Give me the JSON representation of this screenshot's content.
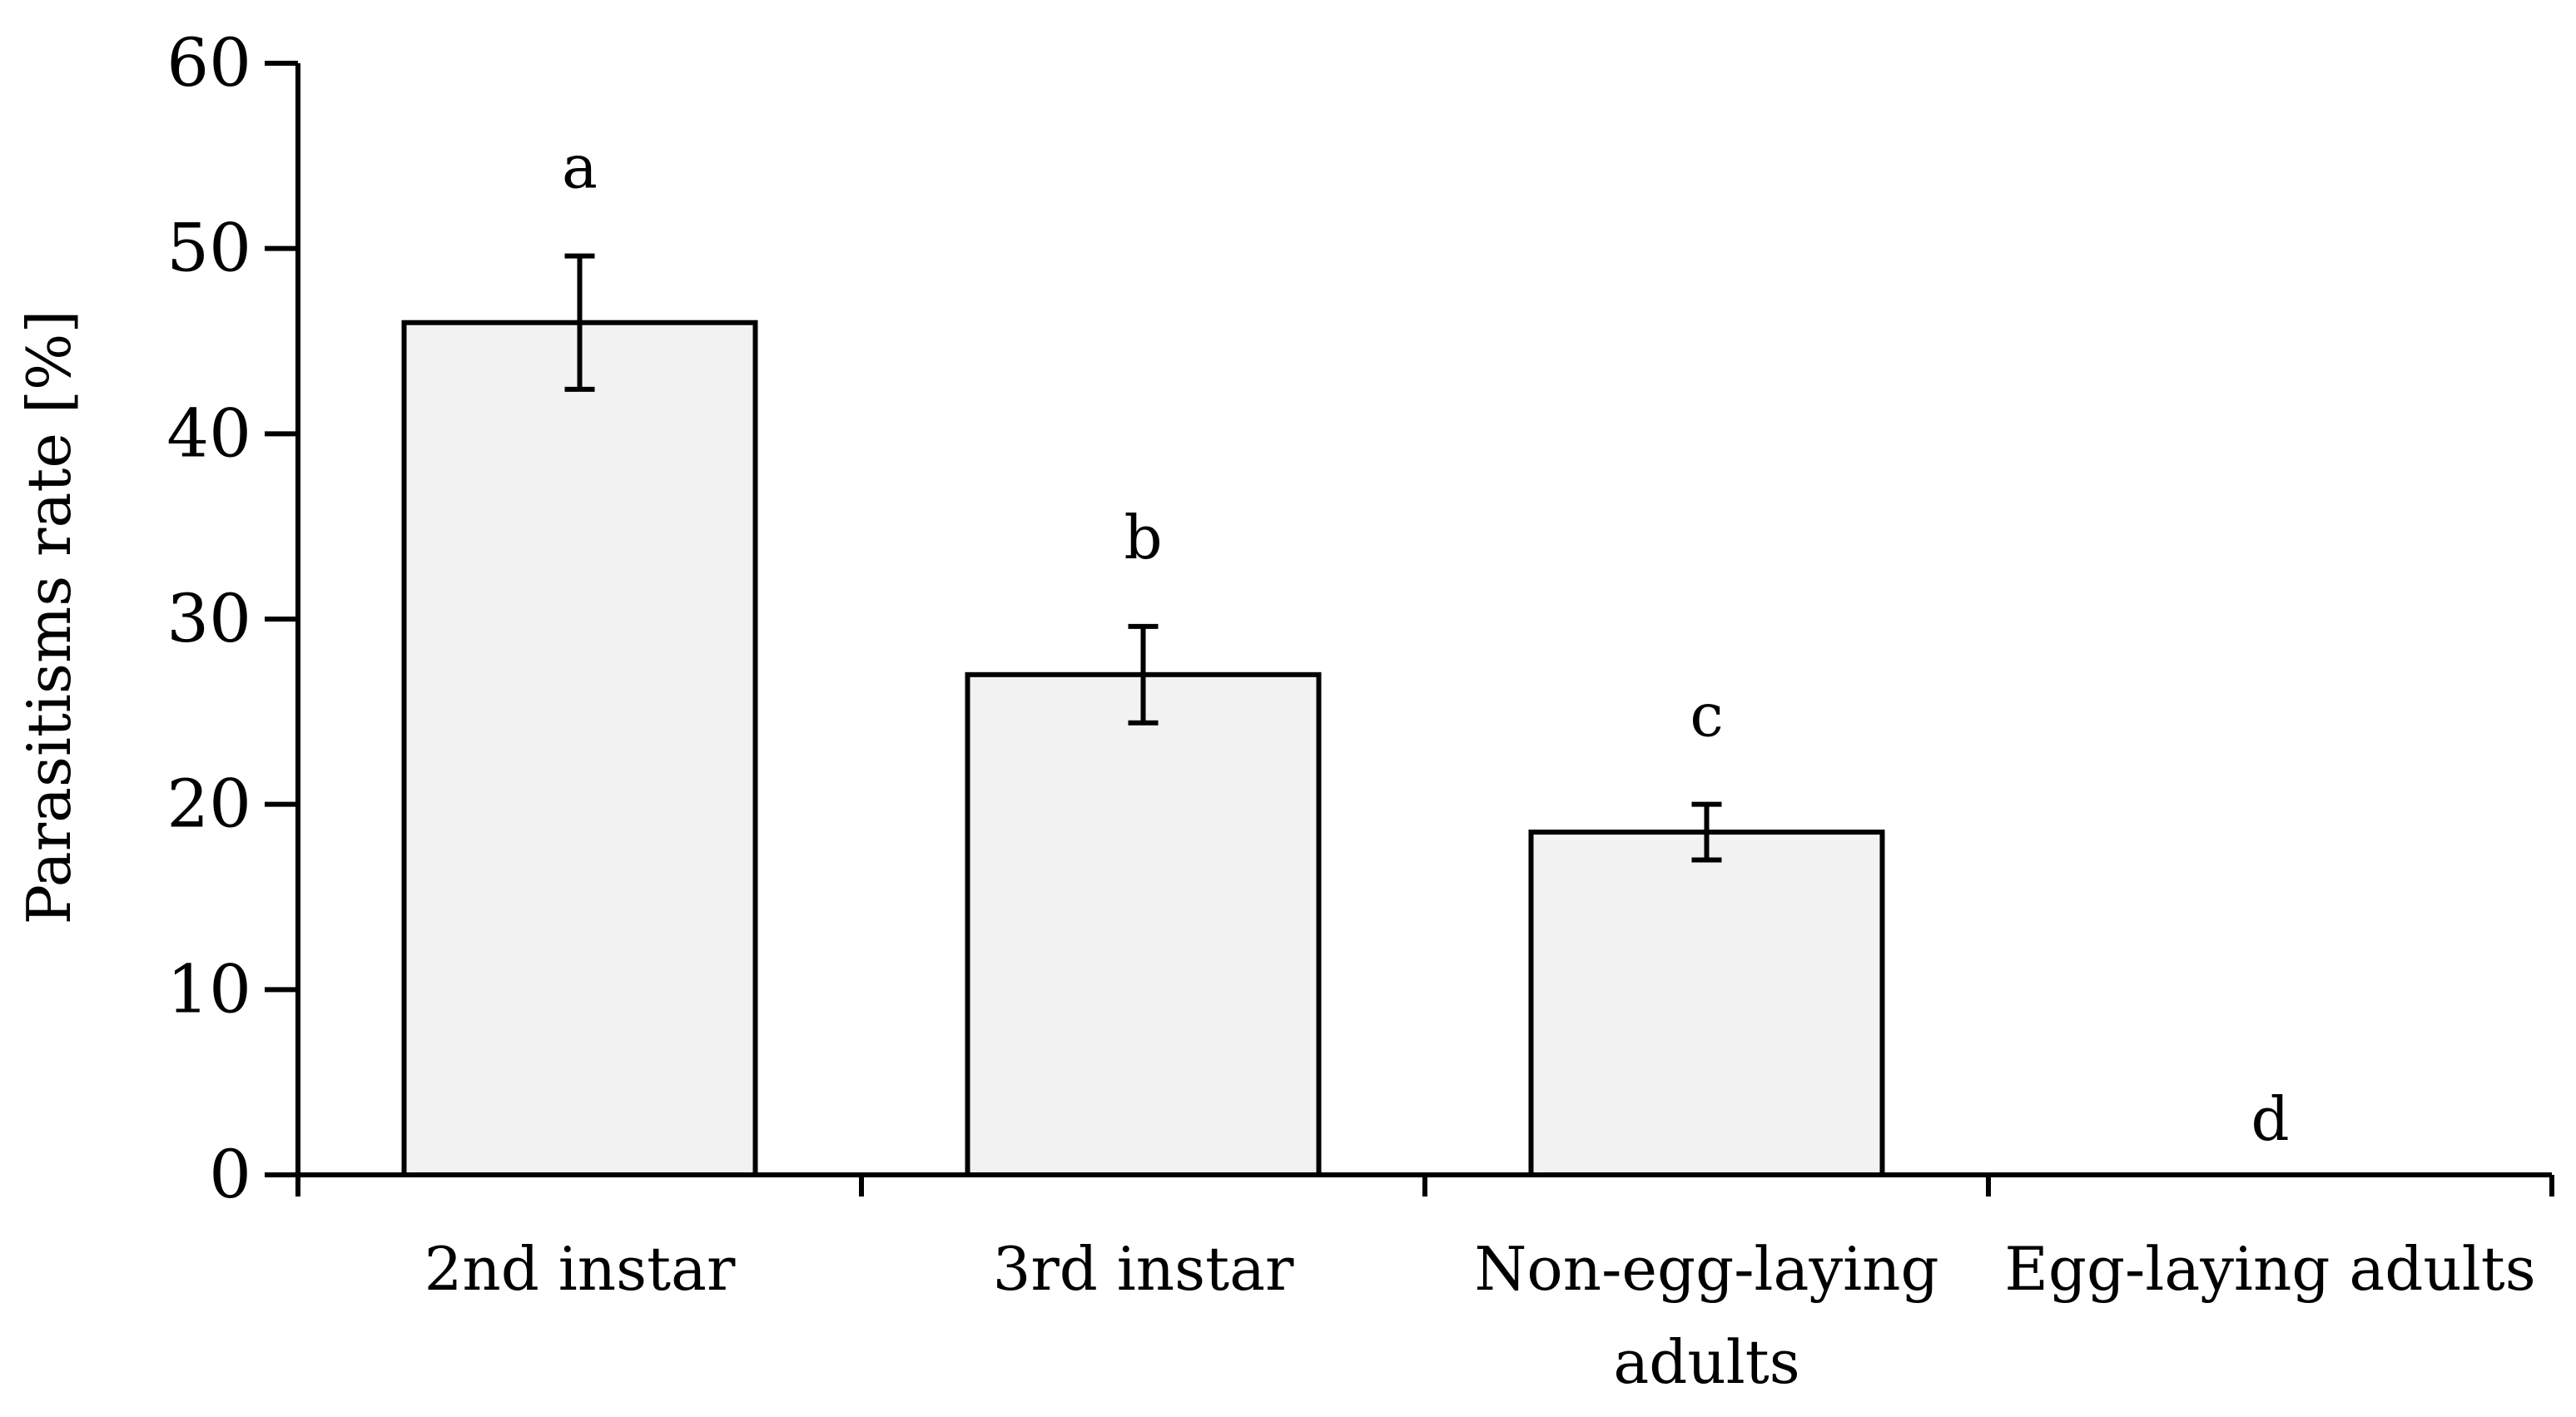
{
  "chart_data": {
    "type": "bar",
    "title": "",
    "xlabel": "",
    "ylabel": "Parasitisms rate [%]",
    "ylim": [
      0,
      60
    ],
    "yticks": [
      0,
      10,
      20,
      30,
      40,
      50,
      60
    ],
    "grid": false,
    "categories": [
      [
        "2nd instar"
      ],
      [
        "3rd instar"
      ],
      [
        "Non-egg-laying",
        "adults"
      ],
      [
        "Egg-laying adults"
      ]
    ],
    "values": [
      46,
      27,
      18.5,
      0
    ],
    "error_low": [
      42.4,
      24.4,
      17.0,
      0
    ],
    "error_high": [
      49.6,
      29.6,
      20.0,
      0
    ],
    "annotations": [
      "a",
      "b",
      "c",
      "d"
    ],
    "colors": {
      "bar_fill": "#f2f2f2",
      "stroke": "#000000"
    }
  }
}
